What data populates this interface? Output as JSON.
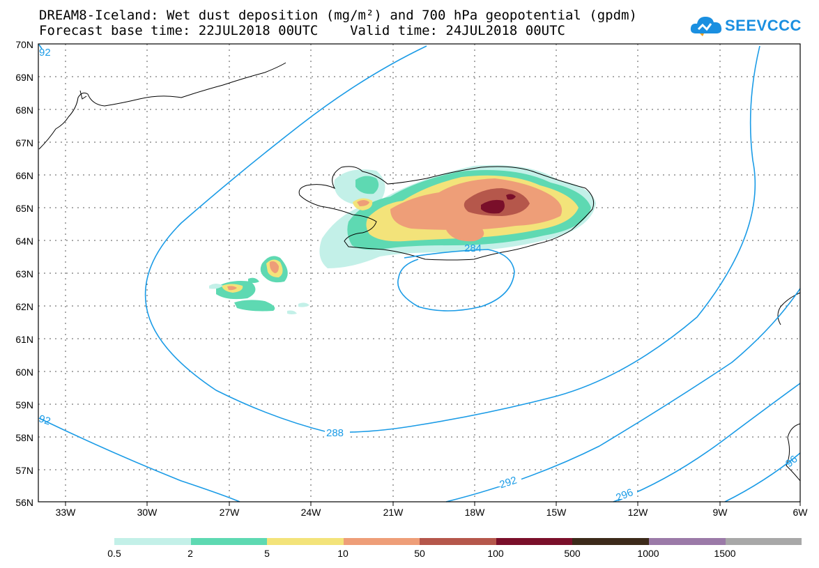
{
  "header": {
    "title_line1": "DREAM8-Iceland: Wet dust deposition (mg/m²) and 700 hPa geopotential (gpdm)",
    "title_line2": "Forecast base time: 22JUL2018 00UTC    Valid time: 24JUL2018 00UTC"
  },
  "logo": {
    "text": "SEEVCCC",
    "icon": "cloud-icon"
  },
  "map": {
    "lat_labels": [
      "70N",
      "69N",
      "68N",
      "67N",
      "66N",
      "65N",
      "64N",
      "63N",
      "62N",
      "61N",
      "60N",
      "59N",
      "58N",
      "57N",
      "56N"
    ],
    "lon_labels": [
      "33W",
      "30W",
      "27W",
      "24W",
      "21W",
      "18W",
      "15W",
      "12W",
      "9W",
      "6W"
    ],
    "contour_labels": {
      "c284": "284",
      "c288": "288",
      "c292": "292",
      "c296": "296",
      "c292_left": "92",
      "c292_top": "92",
      "c296_right": "96"
    }
  },
  "legend": {
    "colors": [
      "#c3f0e8",
      "#5ed9b2",
      "#f3e37a",
      "#ee9e78",
      "#b5574b",
      "#7a0f2a",
      "#3c2a1a",
      "#9b7aa8",
      "#a8a8a8"
    ],
    "labels": [
      "0.5",
      "2",
      "5",
      "10",
      "50",
      "100",
      "500",
      "1000",
      "1500"
    ]
  },
  "colors": {
    "contour": "#1a9be6",
    "grid": "#555555"
  }
}
